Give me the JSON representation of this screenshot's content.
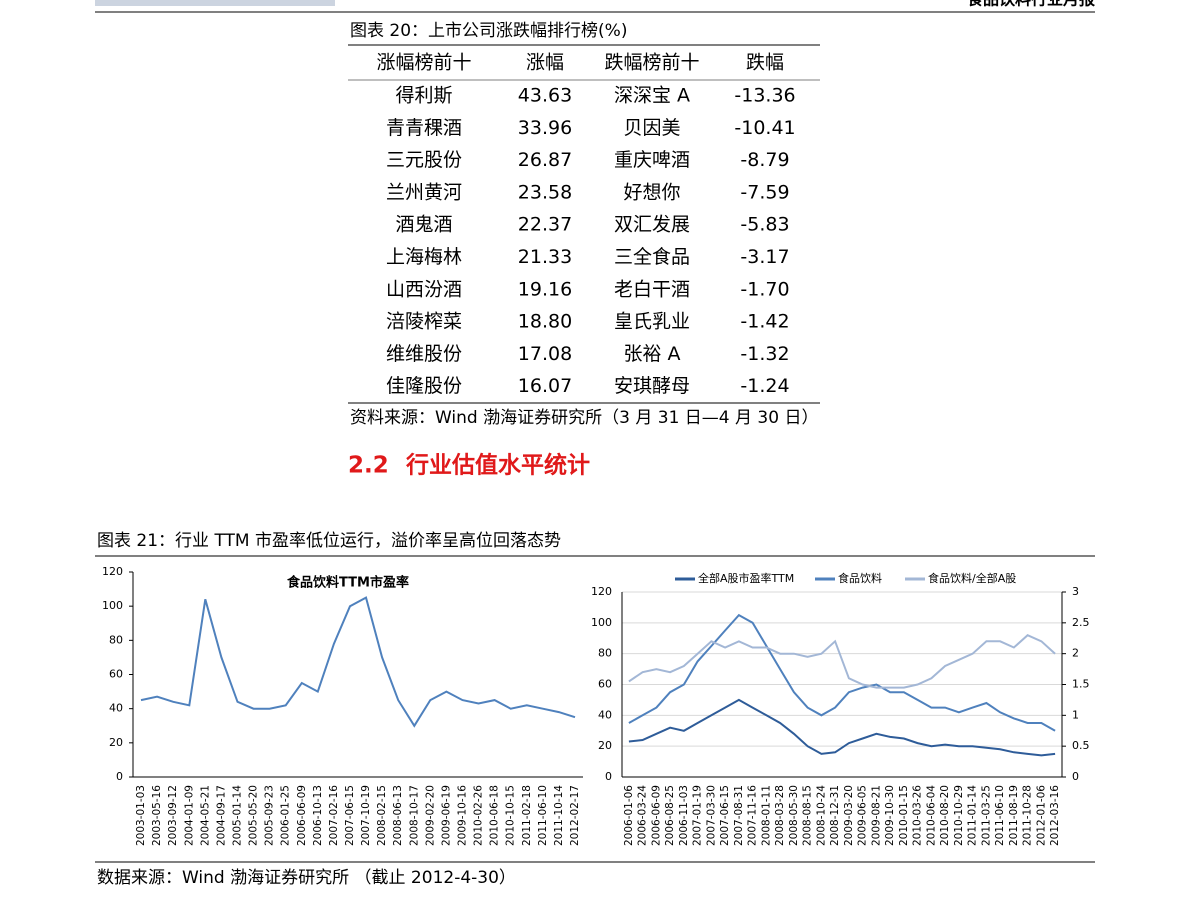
{
  "header": {
    "title": "食品饮料行业月报"
  },
  "figure20": {
    "caption": "图表 20：上市公司涨跌幅排行榜(%)",
    "columns": [
      "涨幅榜前十",
      "涨幅",
      "跌幅榜前十",
      "跌幅"
    ],
    "rows": [
      [
        "得利斯",
        "43.63",
        "深深宝 A",
        "-13.36"
      ],
      [
        "青青稞酒",
        "33.96",
        "贝因美",
        "-10.41"
      ],
      [
        "三元股份",
        "26.87",
        "重庆啤酒",
        "-8.79"
      ],
      [
        "兰州黄河",
        "23.58",
        "好想你",
        "-7.59"
      ],
      [
        "酒鬼酒",
        "22.37",
        "双汇发展",
        "-5.83"
      ],
      [
        "上海梅林",
        "21.33",
        "三全食品",
        "-3.17"
      ],
      [
        "山西汾酒",
        "19.16",
        "老白干酒",
        "-1.70"
      ],
      [
        "涪陵榨菜",
        "18.80",
        "皇氏乳业",
        "-1.42"
      ],
      [
        "维维股份",
        "17.08",
        "张裕 A",
        "-1.32"
      ],
      [
        "佳隆股份",
        "16.07",
        "安琪酵母",
        "-1.24"
      ]
    ],
    "source": "资料来源：Wind 渤海证券研究所（3 月 31 日—4 月 30 日）"
  },
  "section": {
    "number": "2.2",
    "title": "行业估值水平统计"
  },
  "figure21": {
    "caption": "图表 21：行业 TTM 市盈率低位运行，溢价率呈高位回落态势",
    "charts": [
      {
        "type": "line",
        "title": "食品饮料TTM市盈率",
        "color": "#4f81bd",
        "x": [
          "2003-01-03",
          "2003-05-16",
          "2003-09-12",
          "2004-01-09",
          "2004-05-21",
          "2004-09-17",
          "2005-01-14",
          "2005-05-20",
          "2005-09-23",
          "2006-01-25",
          "2006-06-09",
          "2006-10-13",
          "2007-02-16",
          "2007-06-15",
          "2007-10-19",
          "2008-02-15",
          "2008-06-13",
          "2008-10-17",
          "2009-02-20",
          "2009-06-19",
          "2009-10-16",
          "2010-02-26",
          "2010-06-18",
          "2010-10-15",
          "2011-02-18",
          "2011-06-10",
          "2011-10-14",
          "2012-02-17"
        ],
        "values": [
          45,
          47,
          44,
          42,
          104,
          70,
          44,
          40,
          40,
          42,
          55,
          50,
          78,
          100,
          105,
          70,
          45,
          30,
          45,
          50,
          45,
          43,
          45,
          40,
          42,
          40,
          38,
          35
        ],
        "ylim": [
          0,
          120
        ],
        "yticks": [
          0,
          20,
          40,
          60,
          80,
          100,
          120
        ]
      },
      {
        "type": "line",
        "legend": "top",
        "x": [
          "2006-01-06",
          "2006-03-24",
          "2006-06-09",
          "2006-08-25",
          "2006-11-03",
          "2007-01-19",
          "2007-03-30",
          "2007-06-15",
          "2007-08-31",
          "2007-11-16",
          "2008-01-11",
          "2008-03-28",
          "2008-05-30",
          "2008-08-15",
          "2008-10-24",
          "2008-12-31",
          "2009-03-20",
          "2009-06-05",
          "2009-08-21",
          "2009-10-30",
          "2010-01-15",
          "2010-03-26",
          "2010-06-04",
          "2010-08-20",
          "2010-10-29",
          "2011-01-14",
          "2011-03-25",
          "2011-06-10",
          "2011-08-19",
          "2011-10-28",
          "2012-01-06",
          "2012-03-16"
        ],
        "series": [
          {
            "name": "全部A股市盈率TTM",
            "color": "#2e5c99",
            "values": [
              23,
              24,
              28,
              32,
              30,
              35,
              40,
              45,
              50,
              45,
              40,
              35,
              28,
              20,
              15,
              16,
              22,
              25,
              28,
              26,
              25,
              22,
              20,
              21,
              20,
              20,
              19,
              18,
              16,
              15,
              14,
              15
            ]
          },
          {
            "name": "食品饮料",
            "color": "#4f81bd",
            "values": [
              35,
              40,
              45,
              55,
              60,
              75,
              85,
              95,
              105,
              100,
              85,
              70,
              55,
              45,
              40,
              45,
              55,
              58,
              60,
              55,
              55,
              50,
              45,
              45,
              42,
              45,
              48,
              42,
              38,
              35,
              35,
              30
            ]
          },
          {
            "name": "食品饮料/全部A股",
            "color": "#a3b7d6",
            "axis": "y2",
            "values": [
              1.55,
              1.7,
              1.75,
              1.7,
              1.8,
              2.0,
              2.2,
              2.1,
              2.2,
              2.1,
              2.1,
              2.0,
              2.0,
              1.95,
              2.0,
              2.2,
              1.6,
              1.5,
              1.45,
              1.45,
              1.45,
              1.5,
              1.6,
              1.8,
              1.9,
              2.0,
              2.2,
              2.2,
              2.1,
              2.3,
              2.2,
              2.0
            ]
          }
        ],
        "ylim": [
          0,
          120
        ],
        "yticks": [
          0,
          20,
          40,
          60,
          80,
          100,
          120
        ],
        "y2lim": [
          0,
          3
        ],
        "y2ticks": [
          0,
          0.5,
          1,
          1.5,
          2,
          2.5,
          3
        ],
        "grid": true
      }
    ],
    "source": "数据来源：Wind 渤海证券研究所 （截止 2012-4-30）"
  }
}
